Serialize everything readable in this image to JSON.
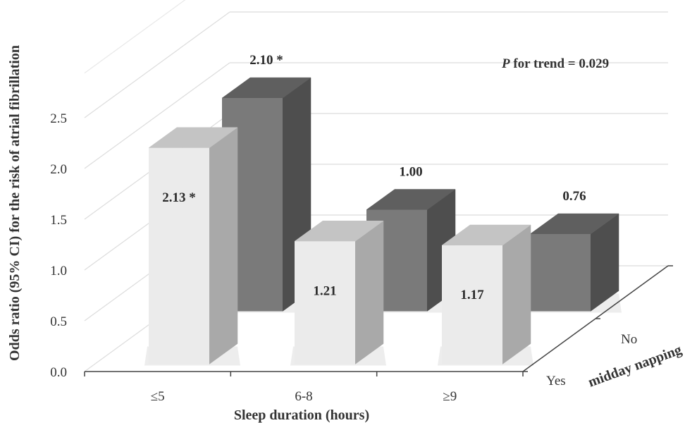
{
  "chart_data": {
    "type": "bar",
    "title": "",
    "annotation": {
      "prefix": "P",
      "text": " for trend = 0.029"
    },
    "xlabel": "Sleep duration (hours)",
    "ylabel": "Odds ratio (95% CI) for the risk of atrial fibrillation",
    "zlabel": "midday napping",
    "categories": [
      "≤5",
      "6-8",
      "≥9"
    ],
    "ylim": [
      0,
      2.5
    ],
    "yticks": [
      "0.0",
      "0.5",
      "1.0",
      "1.5",
      "2.0",
      "2.5"
    ],
    "grid": true,
    "series": [
      {
        "name": "Yes",
        "values": [
          2.13,
          1.21,
          1.17
        ],
        "labels": [
          "2.13 *",
          "1.21",
          "1.17"
        ],
        "color": "#ebebeb"
      },
      {
        "name": "No",
        "values": [
          2.1,
          1.0,
          0.76
        ],
        "labels": [
          "2.10 *",
          "1.00",
          "0.76"
        ],
        "color": "#7a7a7a"
      }
    ]
  }
}
